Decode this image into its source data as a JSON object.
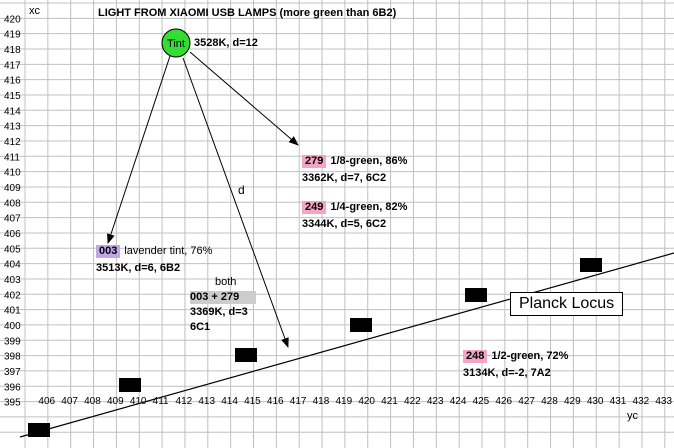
{
  "title": "LIGHT FROM XIAOMI USB LAMPS (more green than 6B2)",
  "axis": {
    "x_header": "xc",
    "y_header": "yc",
    "row_labels": [
      "420",
      "419",
      "418",
      "417",
      "416",
      "415",
      "414",
      "413",
      "412",
      "411",
      "410",
      "409",
      "408",
      "407",
      "406",
      "405",
      "404",
      "403",
      "402",
      "401",
      "400",
      "399",
      "398",
      "397",
      "396",
      "395"
    ],
    "col_labels": [
      "406",
      "407",
      "408",
      "409",
      "410",
      "411",
      "412",
      "413",
      "414",
      "415",
      "416",
      "417",
      "418",
      "419",
      "420",
      "421",
      "422",
      "423",
      "424",
      "425",
      "426",
      "427",
      "428",
      "429",
      "430",
      "431",
      "432",
      "433"
    ]
  },
  "tint": {
    "label": "Tint",
    "note": "3528K, d=12",
    "fill": "#33dd33"
  },
  "entries": {
    "e279": {
      "code": "279",
      "line1": "1/8-green, 86%",
      "line2": "3362K, d=7, 6C2",
      "color": "#f4a4c4"
    },
    "e249": {
      "code": "249",
      "line1": "1/4-green, 82%",
      "line2": "3344K, d=5, 6C2",
      "color": "#f4a4c4"
    },
    "e003": {
      "code": "003",
      "line1": "lavender tint, 76%",
      "line2": "3513K, d=6, 6B2",
      "color": "#c0a8e8"
    },
    "e248": {
      "code": "248",
      "line1": "1/2-green, 72%",
      "line2": "3134K, d=-2, 7A2",
      "color": "#f4a4c4"
    }
  },
  "both": {
    "heading": "both",
    "line1": "003 + 279",
    "line2": "3369K, d=3",
    "line3": "6C1",
    "shade": "#cccccc"
  },
  "d_label": "d",
  "planck_label": "Planck Locus",
  "colors": {
    "grid": "#c0c0c0",
    "header_bg": "#ffffff",
    "marker": "#000000"
  }
}
